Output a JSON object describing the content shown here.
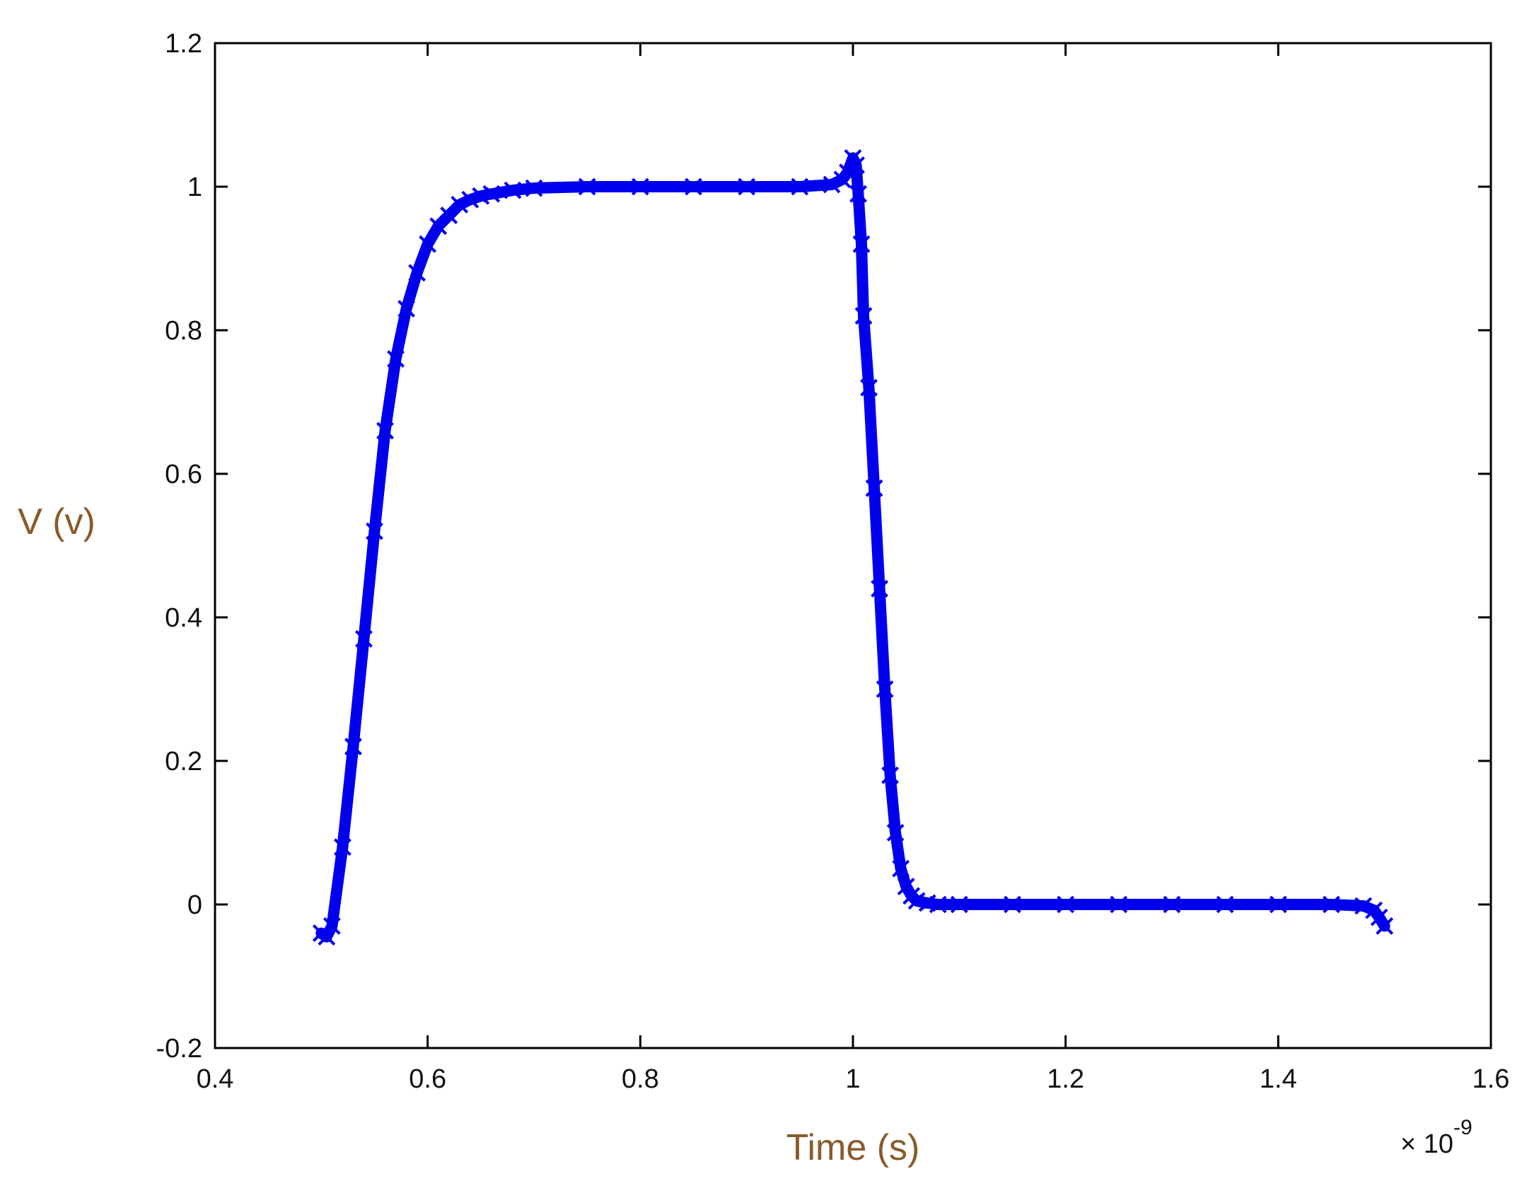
{
  "chart_data": {
    "type": "scatter",
    "title": "",
    "xlabel": "Time (s)",
    "ylabel": "V (v)",
    "x_multiplier": "× 10",
    "x_exponent": "-9",
    "xlim": [
      0.4,
      1.6
    ],
    "ylim": [
      -0.2,
      1.2
    ],
    "xticks": [
      "0.4",
      "0.6",
      "0.8",
      "1",
      "1.2",
      "1.4",
      "1.6"
    ],
    "yticks": [
      "-0.2",
      "0",
      "0.2",
      "0.4",
      "0.6",
      "0.8",
      "1",
      "1.2"
    ],
    "grid": false,
    "legend": false,
    "marker": "x",
    "color": "#0000ee",
    "series": [
      {
        "x": [
          0.5,
          0.505,
          0.51,
          0.52,
          0.53,
          0.54,
          0.55,
          0.56,
          0.57,
          0.58,
          0.59,
          0.6,
          0.61,
          0.62,
          0.63,
          0.64,
          0.65,
          0.66,
          0.68,
          0.7,
          0.75,
          0.8,
          0.85,
          0.9,
          0.95,
          0.98,
          0.99,
          0.995,
          1.0,
          1.003,
          1.005,
          1.008,
          1.01,
          1.015,
          1.02,
          1.025,
          1.03,
          1.035,
          1.04,
          1.045,
          1.05,
          1.055,
          1.06,
          1.07,
          1.08,
          1.1,
          1.15,
          1.2,
          1.25,
          1.3,
          1.35,
          1.4,
          1.45,
          1.48,
          1.49,
          1.495,
          1.5
        ],
        "y": [
          -0.04,
          -0.045,
          -0.03,
          0.08,
          0.22,
          0.37,
          0.52,
          0.66,
          0.76,
          0.83,
          0.88,
          0.92,
          0.945,
          0.96,
          0.975,
          0.982,
          0.987,
          0.99,
          0.995,
          0.998,
          1.0,
          1.0,
          1.0,
          1.0,
          1.0,
          1.003,
          1.01,
          1.02,
          1.04,
          1.03,
          0.99,
          0.92,
          0.82,
          0.72,
          0.58,
          0.44,
          0.3,
          0.18,
          0.1,
          0.05,
          0.025,
          0.012,
          0.005,
          0.002,
          0.0,
          0.0,
          0.0,
          0.0,
          0.0,
          0.0,
          0.0,
          0.0,
          0.0,
          -0.002,
          -0.008,
          -0.018,
          -0.03
        ]
      }
    ]
  }
}
